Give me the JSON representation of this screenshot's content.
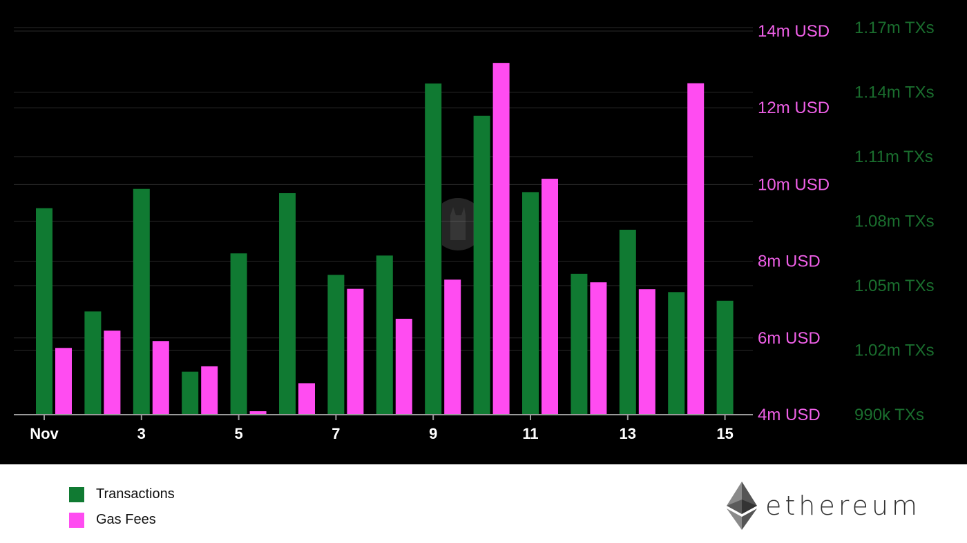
{
  "colors": {
    "background": "#000000",
    "transactions": "#107a32",
    "gas_fees": "#ff4cf1",
    "left_axis_text": "#f060e8",
    "right_axis_text": "#1a6e2e",
    "x_axis_text": "#ffffff",
    "grid": "#2a2a2a"
  },
  "legend": {
    "transactions_label": "Transactions",
    "gas_fees_label": "Gas Fees"
  },
  "brand": {
    "name": "ethereum",
    "icon": "ethereum-diamond-icon"
  },
  "watermark": {
    "icon": "llama-icon"
  },
  "chart_data": {
    "type": "bar",
    "x": [
      1,
      2,
      3,
      4,
      5,
      6,
      7,
      8,
      9,
      10,
      11,
      12,
      13,
      14,
      15
    ],
    "x_tick_labels": [
      {
        "x": 1,
        "label": "Nov"
      },
      {
        "x": 3,
        "label": "3"
      },
      {
        "x": 5,
        "label": "5"
      },
      {
        "x": 7,
        "label": "7"
      },
      {
        "x": 9,
        "label": "9"
      },
      {
        "x": 11,
        "label": "11"
      },
      {
        "x": 13,
        "label": "13"
      },
      {
        "x": 15,
        "label": "15"
      }
    ],
    "series": [
      {
        "name": "Transactions",
        "axis": "right",
        "values": [
          1086000,
          1038000,
          1095000,
          1010000,
          1065000,
          1093000,
          1055000,
          1064000,
          1144000,
          1129000,
          1093500,
          1055500,
          1076000,
          1047000,
          1043000
        ]
      },
      {
        "name": "Gas Fees",
        "axis": "left",
        "values": [
          5740000,
          6190000,
          5920000,
          5260000,
          4090000,
          4820000,
          7280000,
          6500000,
          7520000,
          13170000,
          10150000,
          7450000,
          7270000,
          12640000,
          null
        ]
      }
    ],
    "y_left": {
      "ylim": [
        4000000,
        14000000
      ],
      "tick_values": [
        4000000,
        6000000,
        8000000,
        10000000,
        12000000,
        14000000
      ],
      "tick_labels": [
        "4m USD",
        "6m USD",
        "8m USD",
        "10m USD",
        "12m USD",
        "14m USD"
      ]
    },
    "y_right": {
      "ylim": [
        990000,
        1170000
      ],
      "tick_values": [
        990000,
        1020000,
        1050000,
        1080000,
        1110000,
        1140000,
        1170000
      ],
      "tick_labels": [
        "990k TXs",
        "1.02m TXs",
        "1.05m TXs",
        "1.08m TXs",
        "1.11m TXs",
        "1.14m TXs",
        "1.17m TXs"
      ]
    },
    "grid": true,
    "legend_position": "bottom-left"
  }
}
